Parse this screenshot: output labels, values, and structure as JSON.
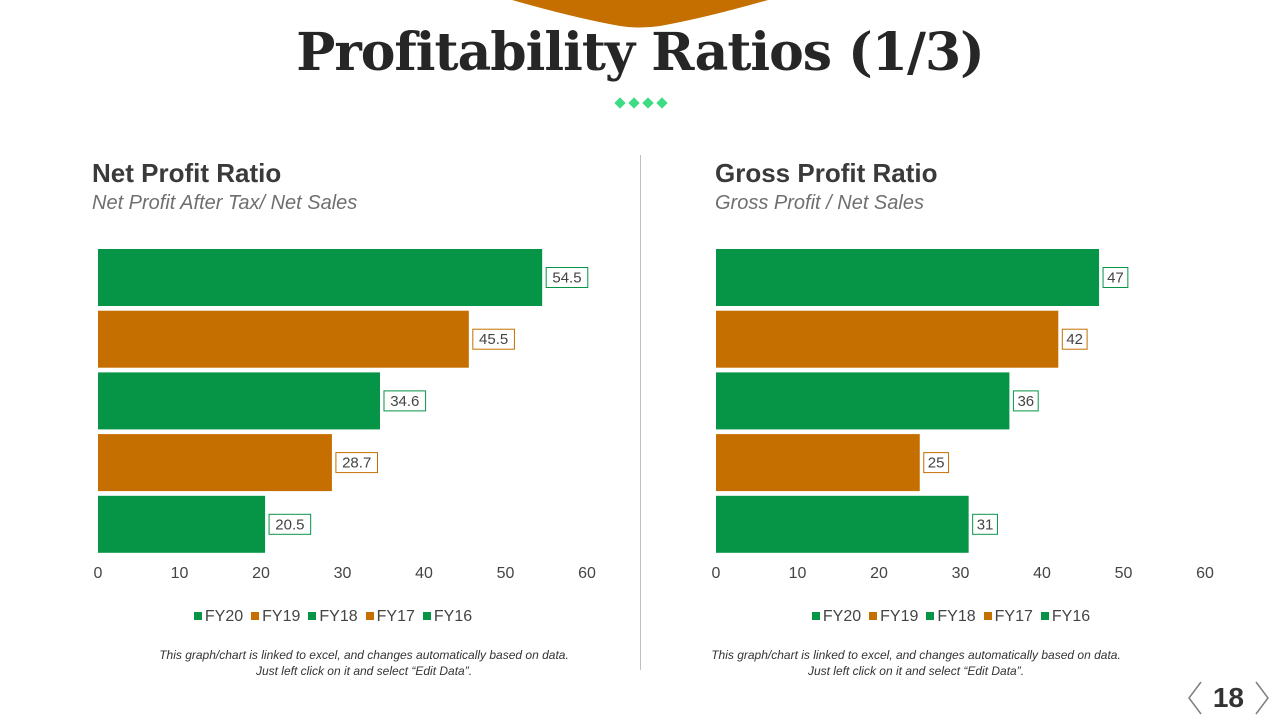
{
  "slide": {
    "title": "Profitability Ratios (1/3)",
    "page_number": "18",
    "accent_color": "#c46f00",
    "diamond_color": "#3ddc84"
  },
  "left_panel": {
    "title": "Net Profit Ratio",
    "subtitle": "Net Profit After Tax/ Net Sales",
    "note_line1": "This graph/chart is linked to excel, and changes automatically based on data.",
    "note_line2": "Just left click on it and select “Edit Data”."
  },
  "right_panel": {
    "title": "Gross Profit Ratio",
    "subtitle": "Gross Profit / Net Sales",
    "note_line1": "This graph/chart is linked to excel, and changes automatically based on data.",
    "note_line2": "Just left click on it and select “Edit Data”."
  },
  "chart_data": [
    {
      "type": "bar",
      "orientation": "horizontal",
      "title": "Net Profit Ratio",
      "categories": [
        "FY20",
        "FY19",
        "FY18",
        "FY17",
        "FY16"
      ],
      "values": [
        54.5,
        45.5,
        34.6,
        28.7,
        20.5
      ],
      "value_labels": [
        "54.5",
        "45.5",
        "34.6",
        "28.7",
        "20.5"
      ],
      "colors": [
        "#069447",
        "#c46f00",
        "#069447",
        "#c46f00",
        "#069447"
      ],
      "xlim": [
        0,
        60
      ],
      "xticks": [
        "0",
        "10",
        "20",
        "30",
        "40",
        "50",
        "60"
      ],
      "legend": [
        "FY20",
        "FY19",
        "FY18",
        "FY17",
        "FY16"
      ],
      "legend_position": "bottom",
      "grid": false
    },
    {
      "type": "bar",
      "orientation": "horizontal",
      "title": "Gross Profit Ratio",
      "categories": [
        "FY20",
        "FY19",
        "FY18",
        "FY17",
        "FY16"
      ],
      "values": [
        47,
        42,
        36,
        25,
        31
      ],
      "value_labels": [
        "47",
        "42",
        "36",
        "25",
        "31"
      ],
      "colors": [
        "#069447",
        "#c46f00",
        "#069447",
        "#c46f00",
        "#069447"
      ],
      "xlim": [
        0,
        60
      ],
      "xticks": [
        "0",
        "10",
        "20",
        "30",
        "40",
        "50",
        "60"
      ],
      "legend": [
        "FY20",
        "FY19",
        "FY18",
        "FY17",
        "FY16"
      ],
      "legend_position": "bottom",
      "grid": false
    }
  ]
}
